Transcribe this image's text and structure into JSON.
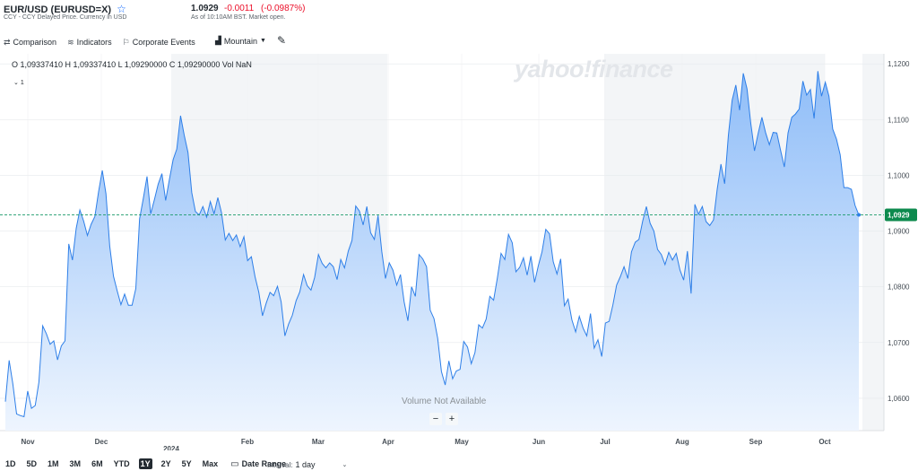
{
  "header": {
    "symbol": "EUR/USD (EURUSD=X)",
    "subtitle": "CCY - CCY Delayed Price. Currency in USD",
    "price": "1.0929",
    "change": "-0.0011",
    "change_pct": "(-0.0987%)",
    "as_of": "As of 10:10AM BST. Market open.",
    "watchlist_icon": "star-outline-icon"
  },
  "toolbar": {
    "comparison": "Comparison",
    "indicators": "Indicators",
    "corporate_events": "Corporate Events",
    "chart_type": "Mountain",
    "icons": [
      "comparison-icon",
      "indicators-icon",
      "corporate-events-icon",
      "mountain-icon",
      "draw-pencil-icon"
    ]
  },
  "ohlc": {
    "text": "O 1,09337410  H 1,09337410  L 1,09290000  C 1,09290000  Vol NaN",
    "collapse": "1"
  },
  "watermark": "yahoo!finance",
  "volume_note": "Volume Not Available",
  "zoom": {
    "minus": "−",
    "plus": "+"
  },
  "ranges": [
    "1D",
    "5D",
    "1M",
    "3M",
    "6M",
    "YTD",
    "1Y",
    "2Y",
    "5Y",
    "Max"
  ],
  "active_range": "1Y",
  "date_range": "Date Range",
  "interval": {
    "label": "Interval:",
    "value": "1 day"
  },
  "colors": {
    "line": "#2e7fe8",
    "fill_top": "#8fbdf8",
    "fill_bottom": "#eef5fe",
    "last_badge": "#0d8a4e",
    "dashed": "#1a9a6a"
  },
  "chart_data": {
    "type": "area",
    "title": "",
    "xlabel": "",
    "ylabel": "",
    "last_price_label": "1,0929",
    "ylim": [
      1.0542,
      1.1218
    ],
    "y_ticks": [
      1.06,
      1.07,
      1.08,
      1.09,
      1.1,
      1.11,
      1.12
    ],
    "y_tick_labels": [
      "1,0600",
      "1,0700",
      "1,0800",
      "1,0900",
      "1,1000",
      "1,1100",
      "1,1200"
    ],
    "x_month_labels": [
      "Nov",
      "Dec",
      "Feb",
      "Mar",
      "Apr",
      "May",
      "Jun",
      "Jul",
      "Aug",
      "Sep",
      "Oct"
    ],
    "x_year_label": "2024",
    "grid": true,
    "legend": "none",
    "series": [
      {
        "values": [
          1.0594,
          1.0668,
          1.0626,
          1.0572,
          1.0569,
          1.0567,
          1.0613,
          1.0582,
          1.0587,
          1.0629,
          1.073,
          1.0716,
          1.0697,
          1.0703,
          1.0669,
          1.0694,
          1.0703,
          1.0877,
          1.0848,
          1.0905,
          1.0938,
          1.0918,
          1.0892,
          1.0912,
          1.0926,
          1.097,
          1.1009,
          1.0967,
          1.0873,
          1.0819,
          1.0793,
          1.0768,
          1.0787,
          1.0767,
          1.0767,
          1.0797,
          1.0922,
          1.0958,
          1.0998,
          1.0931,
          1.0957,
          1.0984,
          1.1003,
          1.0955,
          1.0992,
          1.1028,
          1.1047,
          1.1107,
          1.1072,
          1.1041,
          1.0969,
          1.0935,
          1.0929,
          1.0944,
          1.0925,
          1.0953,
          1.0931,
          1.096,
          1.0933,
          1.0884,
          1.0896,
          1.0883,
          1.0893,
          1.0872,
          1.089,
          1.0847,
          1.0854,
          1.0818,
          1.079,
          1.0748,
          1.0771,
          1.079,
          1.0784,
          1.0801,
          1.0773,
          1.0712,
          1.0733,
          1.0749,
          1.0775,
          1.0791,
          1.0822,
          1.0802,
          1.0794,
          1.0817,
          1.0858,
          1.0842,
          1.0834,
          1.0843,
          1.0836,
          1.0813,
          1.0849,
          1.0834,
          1.0864,
          1.0883,
          1.0945,
          1.0936,
          1.0911,
          1.0944,
          1.0897,
          1.0885,
          1.0928,
          1.0863,
          1.0815,
          1.0843,
          1.083,
          1.0803,
          1.0822,
          1.0773,
          1.0739,
          1.08,
          1.0783,
          1.0858,
          1.085,
          1.0836,
          1.0758,
          1.0743,
          1.0708,
          1.0648,
          1.0624,
          1.0667,
          1.0635,
          1.0649,
          1.0652,
          1.0702,
          1.0692,
          1.0662,
          1.0682,
          1.0732,
          1.0726,
          1.0742,
          1.0783,
          1.0776,
          1.0816,
          1.086,
          1.0849,
          1.0894,
          1.0879,
          1.0827,
          1.0835,
          1.0852,
          1.0821,
          1.0855,
          1.0808,
          1.0838,
          1.0863,
          1.0903,
          1.0895,
          1.0845,
          1.0823,
          1.085,
          1.0766,
          1.0778,
          1.0741,
          1.0719,
          1.0747,
          1.0726,
          1.0712,
          1.0752,
          1.069,
          1.0705,
          1.0675,
          1.0735,
          1.0738,
          1.0767,
          1.0803,
          1.0818,
          1.0836,
          1.0815,
          1.0863,
          1.088,
          1.0885,
          1.0918,
          1.0944,
          1.0914,
          1.09,
          1.0867,
          1.0858,
          1.084,
          1.0862,
          1.0848,
          1.086,
          1.083,
          1.0812,
          1.0864,
          1.0788,
          1.0948,
          1.093,
          1.0944,
          1.0917,
          1.091,
          1.092,
          1.0975,
          1.102,
          1.0985,
          1.1072,
          1.1135,
          1.1162,
          1.1117,
          1.1183,
          1.1155,
          1.1094,
          1.1044,
          1.1076,
          1.1104,
          1.1076,
          1.1055,
          1.1077,
          1.1076,
          1.1045,
          1.1015,
          1.1076,
          1.1104,
          1.111,
          1.1119,
          1.1169,
          1.1144,
          1.1154,
          1.1102,
          1.1187,
          1.1142,
          1.1167,
          1.1142,
          1.1083,
          1.1065,
          1.1037,
          1.0978,
          1.0978,
          1.0975,
          1.0946,
          1.0929
        ]
      }
    ]
  }
}
